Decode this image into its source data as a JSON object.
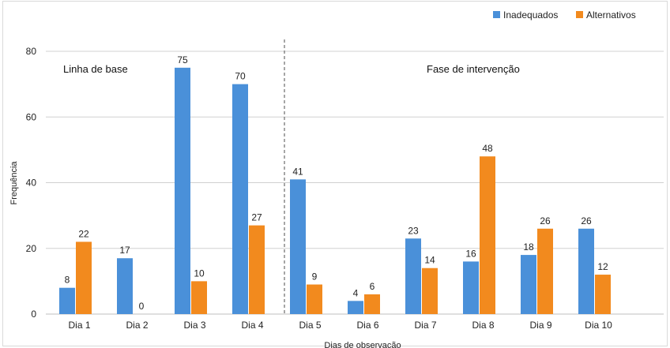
{
  "chart_data": {
    "type": "bar",
    "categories": [
      "Dia 1",
      "Dia 2",
      "Dia 3",
      "Dia 4",
      "Dia 5",
      "Dia 6",
      "Dia 7",
      "Dia 8",
      "Dia 9",
      "Dia 10"
    ],
    "series": [
      {
        "name": "Inadequados",
        "color": "#4a90d9",
        "values": [
          8,
          17,
          75,
          70,
          41,
          4,
          23,
          16,
          18,
          26
        ]
      },
      {
        "name": "Alternativos",
        "color": "#f28a1e",
        "values": [
          22,
          0,
          10,
          27,
          9,
          6,
          14,
          48,
          26,
          12
        ]
      }
    ],
    "xlabel": "Dias de observação",
    "ylabel": "Frequência",
    "ylim": [
      0,
      80
    ],
    "yticks": [
      0,
      20,
      40,
      60,
      80
    ],
    "grid": true,
    "legend_position": "top-right",
    "phases": [
      {
        "label": "Linha de base",
        "days": [
          "Dia 1",
          "Dia 2",
          "Dia 3",
          "Dia 4"
        ]
      },
      {
        "label": "Fase de intervenção",
        "days": [
          "Dia 5",
          "Dia 6",
          "Dia 7",
          "Dia 8",
          "Dia 9",
          "Dia 10"
        ]
      }
    ],
    "phase_divider_after": "Dia 4"
  }
}
